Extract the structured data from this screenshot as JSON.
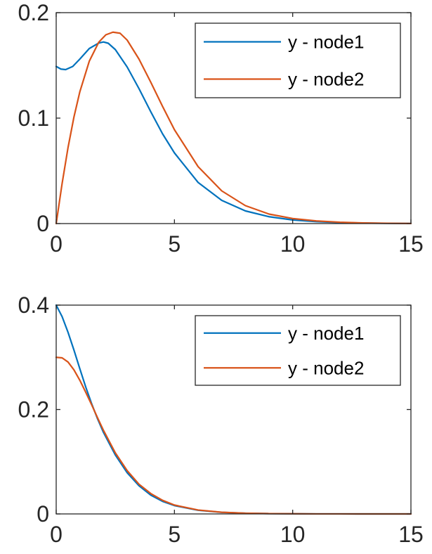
{
  "chart_data": [
    {
      "type": "line",
      "title": "",
      "xlabel": "",
      "ylabel": "",
      "xlim": [
        0,
        15
      ],
      "ylim": [
        0,
        0.2
      ],
      "xticks": [
        0,
        5,
        10,
        15
      ],
      "xtick_labels": [
        "0",
        "5",
        "10",
        "15"
      ],
      "yticks": [
        0,
        0.1,
        0.2
      ],
      "ytick_labels": [
        "0",
        "0.1",
        "0.2"
      ],
      "grid": false,
      "legend_position": "top-right",
      "series": [
        {
          "name": "y - node1",
          "color": "#0072BD",
          "x": [
            0,
            0.2,
            0.4,
            0.7,
            1.0,
            1.4,
            1.8,
            2.0,
            2.2,
            2.5,
            3.0,
            3.5,
            4.0,
            4.5,
            5.0,
            6.0,
            7.0,
            8.0,
            9.0,
            10.0,
            11.0,
            12.0,
            13.0,
            14.0,
            15.0
          ],
          "y": [
            0.149,
            0.1465,
            0.146,
            0.149,
            0.156,
            0.166,
            0.1712,
            0.1722,
            0.171,
            0.165,
            0.1485,
            0.128,
            0.106,
            0.085,
            0.067,
            0.039,
            0.022,
            0.012,
            0.0065,
            0.0034,
            0.0018,
            0.0009,
            0.0005,
            0.0002,
            0.0001
          ]
        },
        {
          "name": "y - node2",
          "color": "#D95319",
          "x": [
            0,
            0.25,
            0.5,
            0.75,
            1.0,
            1.4,
            1.8,
            2.1,
            2.4,
            2.7,
            3.0,
            3.5,
            4.0,
            4.5,
            5.0,
            6.0,
            7.0,
            8.0,
            9.0,
            10.0,
            11.0,
            12.0,
            13.0,
            14.0,
            15.0
          ],
          "y": [
            0,
            0.038,
            0.072,
            0.101,
            0.125,
            0.154,
            0.172,
            0.179,
            0.1815,
            0.1805,
            0.174,
            0.156,
            0.134,
            0.111,
            0.089,
            0.054,
            0.031,
            0.017,
            0.009,
            0.0048,
            0.0025,
            0.0013,
            0.0006,
            0.0003,
            0.0001
          ]
        }
      ]
    },
    {
      "type": "line",
      "title": "",
      "xlabel": "",
      "ylabel": "",
      "xlim": [
        0,
        15
      ],
      "ylim": [
        0,
        0.4
      ],
      "xticks": [
        0,
        5,
        10,
        15
      ],
      "xtick_labels": [
        "0",
        "5",
        "10",
        "15"
      ],
      "yticks": [
        0,
        0.2,
        0.4
      ],
      "ytick_labels": [
        "0",
        "0.2",
        "0.4"
      ],
      "grid": false,
      "legend_position": "top-right",
      "series": [
        {
          "name": "y - node1",
          "color": "#0072BD",
          "x": [
            0,
            0.25,
            0.5,
            0.75,
            1.0,
            1.25,
            1.5,
            1.75,
            2.0,
            2.5,
            3.0,
            3.5,
            4.0,
            4.5,
            5.0,
            6.0,
            7.0,
            8.0,
            9.0,
            10.0,
            11.0,
            12.0,
            13.0,
            14.0,
            15.0
          ],
          "y": [
            0.4,
            0.378,
            0.348,
            0.314,
            0.278,
            0.243,
            0.211,
            0.182,
            0.156,
            0.113,
            0.079,
            0.054,
            0.036,
            0.024,
            0.016,
            0.007,
            0.003,
            0.0013,
            0.0006,
            0.0003,
            0.0001,
            0.0001,
            0,
            0,
            0
          ]
        },
        {
          "name": "y - node2",
          "color": "#D95319",
          "x": [
            0,
            0.25,
            0.5,
            0.75,
            1.0,
            1.25,
            1.5,
            1.75,
            2.0,
            2.5,
            3.0,
            3.5,
            4.0,
            4.5,
            5.0,
            6.0,
            7.0,
            8.0,
            9.0,
            10.0,
            11.0,
            12.0,
            13.0,
            14.0,
            15.0
          ],
          "y": [
            0.3,
            0.299,
            0.291,
            0.276,
            0.256,
            0.233,
            0.209,
            0.184,
            0.16,
            0.117,
            0.083,
            0.057,
            0.039,
            0.026,
            0.017,
            0.0075,
            0.0032,
            0.0014,
            0.0006,
            0.0003,
            0.0001,
            0.0001,
            0,
            0,
            0
          ]
        }
      ]
    }
  ]
}
